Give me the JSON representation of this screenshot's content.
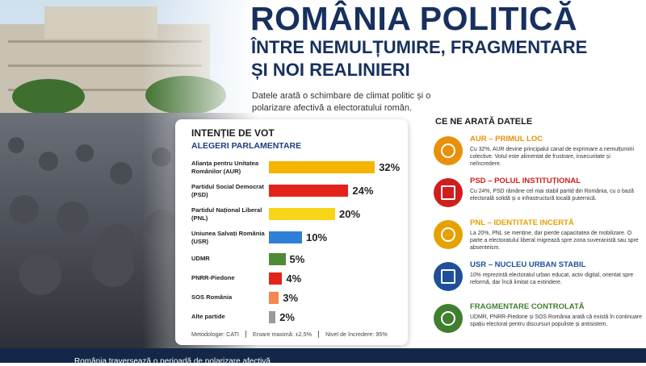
{
  "header": {
    "title": "ROMÂNIA POLITICĂ",
    "subtitle_lines": [
      "ÎNTRE NEMULȚUMIRE, FRAGMENTARE",
      "ȘI NOI REALINIERI"
    ],
    "description": "Datele arată o schimbare de climat politic și o polarizare afectivă a electoratului român."
  },
  "chart_data": {
    "type": "bar",
    "orientation": "horizontal",
    "title": "INTENȚIE DE VOT",
    "subtitle": "ALEGERI PARLAMENTARE",
    "categories": [
      "Alianța pentru Unitatea Românilor (AUR)",
      "Partidul Social Democrat (PSD)",
      "Partidul Național Liberal (PNL)",
      "Uniunea Salvați România (USR)",
      "UDMR",
      "PNRR-Piedone",
      "SOS România",
      "Alte partide"
    ],
    "values": [
      32,
      24,
      20,
      10,
      5,
      4,
      3,
      2
    ],
    "value_labels": [
      "32%",
      "24%",
      "20%",
      "10%",
      "5%",
      "4%",
      "3%",
      "2%"
    ],
    "colors": [
      "#f5b400",
      "#e32219",
      "#f7d417",
      "#2f7fd6",
      "#4f8a35",
      "#e32219",
      "#f4874b",
      "#9a9a9a"
    ]
  },
  "footer_note": [
    "Metodologie: CATI",
    "Eroare maximă: ±2,5%",
    "Nivel de încredere: 95%"
  ],
  "insights": {
    "title": "CE NE ARATĂ DATELE",
    "items": [
      {
        "title": "AUR – PRIMUL LOC",
        "color": "#e8900c",
        "text": "Cu 32%, AUR devine principalul canal de exprimare a nemulțumirii colective. Votul este alimentat de frustrare, insecuritate și neîncredere."
      },
      {
        "title": "PSD – POLUL INSTITUȚIONAL",
        "color": "#d01e1e",
        "text": "Cu 24%, PSD rămâne cel mai stabil partid din România, cu o bază electorală solidă și o infrastructură locală puternică."
      },
      {
        "title": "PNL – IDENTITATE INCERTĂ",
        "color": "#e6a100",
        "text": "La 20%, PNL se menține, dar pierde capacitatea de mobilizare. O parte a electoratului liberal migrează spre zona suveranistă sau spre absenteism."
      },
      {
        "title": "USR – NUCLEU URBAN STABIL",
        "color": "#1f4f99",
        "text": "10% reprezintă electoratul urban educat, activ digital, orientat spre reformă, dar încă limitat ca extindere."
      },
      {
        "title": "FRAGMENTARE CONTROLATĂ",
        "color": "#3f7f2f",
        "text": "UDMR, PNRR-Piedone și SOS România arată că există în continuare spațiu electoral pentru discursuri populiste și antisistem."
      }
    ]
  },
  "banner": "România traversează o perioadă de polarizare afectivă"
}
